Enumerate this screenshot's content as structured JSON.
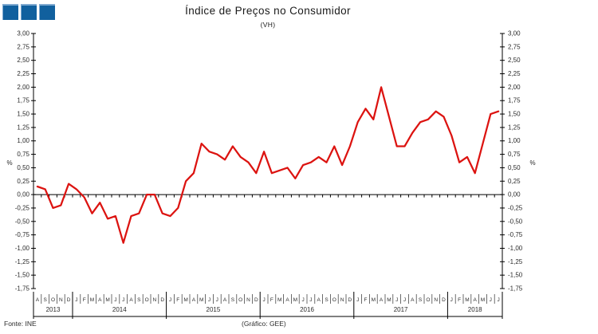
{
  "page": {
    "title": "Índice de Preços no Consumidor",
    "subtitle": "(VH)"
  },
  "logo": {
    "square_count": 3,
    "fill": "#11609E",
    "edge": "#7FA9D0"
  },
  "footer": {
    "source": "Fonte: INE",
    "credit": "(Gráfico: GEE)"
  },
  "chart_data": {
    "type": "line",
    "title": "Índice de Preços no Consumidor",
    "subtitle": "(VH)",
    "ylabel_left": "%",
    "ylabel_right": "%",
    "ylim": [
      -1.75,
      3.0
    ],
    "ytick_step": 0.25,
    "decimal_comma": true,
    "grid": false,
    "legend": null,
    "line_color": "#DC1310",
    "axis_color": "#000000",
    "years": [
      {
        "year": "2013",
        "months": [
          "A",
          "S",
          "O",
          "N",
          "D"
        ],
        "values": [
          0.15,
          0.1,
          -0.25,
          -0.2,
          0.2
        ]
      },
      {
        "year": "2014",
        "months": [
          "J",
          "F",
          "M",
          "A",
          "M",
          "J",
          "J",
          "A",
          "S",
          "O",
          "N",
          "D"
        ],
        "values": [
          0.1,
          -0.05,
          -0.35,
          -0.15,
          -0.45,
          -0.4,
          -0.9,
          -0.4,
          -0.35,
          0.0,
          0.0,
          -0.35
        ]
      },
      {
        "year": "2015",
        "months": [
          "J",
          "F",
          "M",
          "A",
          "M",
          "J",
          "J",
          "A",
          "S",
          "O",
          "N",
          "D"
        ],
        "values": [
          -0.4,
          -0.25,
          0.25,
          0.4,
          0.95,
          0.8,
          0.75,
          0.65,
          0.9,
          0.7,
          0.6,
          0.4
        ]
      },
      {
        "year": "2016",
        "months": [
          "J",
          "F",
          "M",
          "A",
          "M",
          "J",
          "J",
          "A",
          "S",
          "O",
          "N",
          "D"
        ],
        "values": [
          0.8,
          0.4,
          0.45,
          0.5,
          0.3,
          0.55,
          0.6,
          0.7,
          0.6,
          0.9,
          0.55,
          0.9
        ]
      },
      {
        "year": "2017",
        "months": [
          "J",
          "F",
          "M",
          "A",
          "M",
          "J",
          "J",
          "A",
          "S",
          "O",
          "N",
          "D"
        ],
        "values": [
          1.35,
          1.6,
          1.4,
          2.0,
          1.45,
          0.9,
          0.9,
          1.15,
          1.35,
          1.4,
          1.55,
          1.45
        ]
      },
      {
        "year": "2018",
        "months": [
          "J",
          "F",
          "M",
          "A",
          "M",
          "J",
          "J"
        ],
        "values": [
          1.1,
          0.6,
          0.7,
          0.4,
          0.95,
          1.5,
          1.55
        ]
      }
    ]
  }
}
